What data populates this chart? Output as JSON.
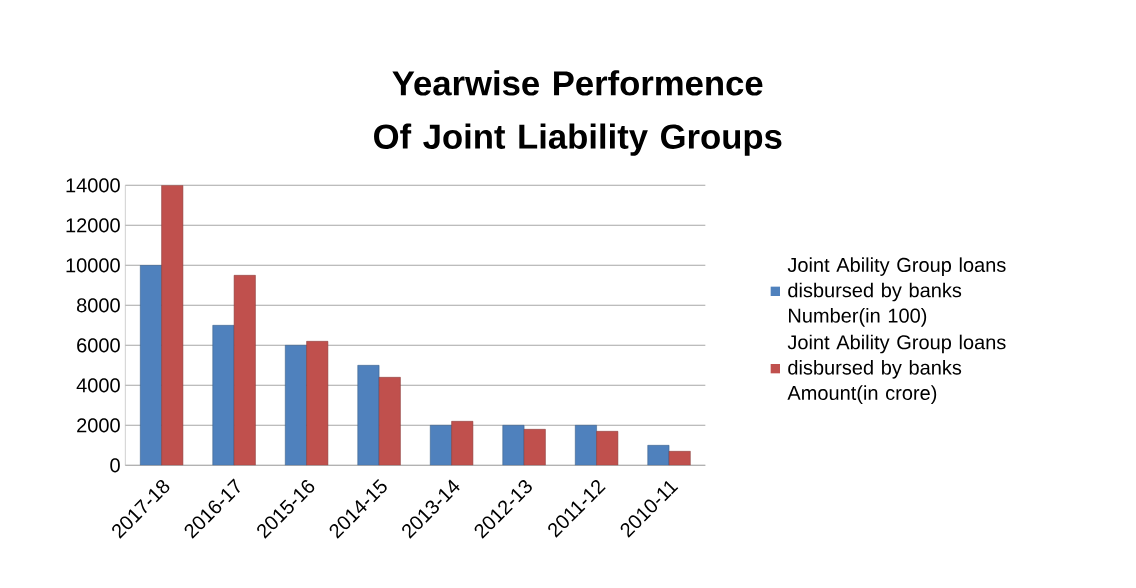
{
  "chart_data": {
    "type": "bar",
    "title": "Yearwise Performence Of Joint Liability Groups",
    "categories": [
      "2017-18",
      "2016-17",
      "2015-16",
      "2014-15",
      "2013-14",
      "2012-13",
      "2011-12",
      "2010-11"
    ],
    "series": [
      {
        "name": "Joint Ability Group loans disbursed by banks Number(in 100)",
        "color": "#4f81bd",
        "values": [
          10000,
          7000,
          6000,
          5000,
          2000,
          2000,
          2000,
          1000
        ]
      },
      {
        "name": "Joint Ability Group loans disbursed by banks Amount(in crore)",
        "color": "#c0504d",
        "values": [
          14000,
          9500,
          6200,
          4400,
          2200,
          1800,
          1700,
          700
        ]
      }
    ],
    "ylim": [
      0,
      14000
    ],
    "yticks": [
      0,
      2000,
      4000,
      6000,
      8000,
      10000,
      12000,
      14000
    ],
    "grid": "y",
    "legend": "right"
  }
}
